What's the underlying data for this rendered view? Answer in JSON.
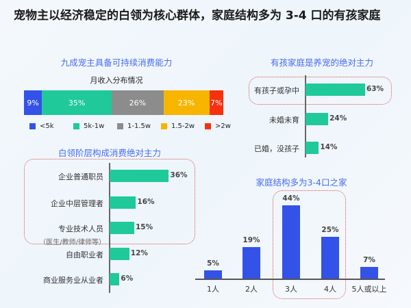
{
  "title": "宠物主以经济稳定的白领为核心群体，家庭结构多为 3-4 口的有孩家庭",
  "chart_data": [
    {
      "type": "bar",
      "stacked": true,
      "title": "九成宠主具备可持续消费能力",
      "subtitle": "月收入分布情况",
      "categories": [
        "<5k",
        "5k-1w",
        "1-1.5w",
        "1.5-2w",
        ">2w"
      ],
      "values": [
        9,
        35,
        26,
        23,
        7
      ],
      "labels": [
        "9%",
        "35%",
        "26%",
        "23%",
        "7%"
      ],
      "colors": [
        "#3352e8",
        "#1fc99a",
        "#8c8c8c",
        "#f7b500",
        "#f5310f"
      ],
      "legend": "bottom"
    },
    {
      "type": "bar",
      "orientation": "horizontal",
      "title": "有孩家庭是养宠的绝对主力",
      "categories": [
        "有孩子或孕中",
        "未婚未育",
        "已婚，没孩子"
      ],
      "values": [
        63,
        24,
        14
      ],
      "labels": [
        "63%",
        "24%",
        "14%"
      ],
      "color": "#1fc99a",
      "highlight": "有孩子或孕中"
    },
    {
      "type": "bar",
      "orientation": "horizontal",
      "title": "白领阶层构成消费绝对主力",
      "categories": [
        "企业普通职员",
        "企业中层管理者",
        "专业技术人员",
        "自由职业者",
        "商业服务业从业者"
      ],
      "note": "（医生/教师/律师等）",
      "values": [
        36,
        16,
        15,
        12,
        6
      ],
      "labels": [
        "36%",
        "16%",
        "15%",
        "12%",
        "6%"
      ],
      "color": "#1fc99a"
    },
    {
      "type": "bar",
      "title": "家庭结构多为3-4口之家",
      "categories": [
        "1人",
        "2人",
        "3人",
        "4人",
        "5人或以上"
      ],
      "values": [
        5,
        19,
        44,
        25,
        7
      ],
      "labels": [
        "5%",
        "19%",
        "44%",
        "25%",
        "7%"
      ],
      "color": "#3352e8",
      "highlight": [
        "3人",
        "4人"
      ]
    }
  ]
}
